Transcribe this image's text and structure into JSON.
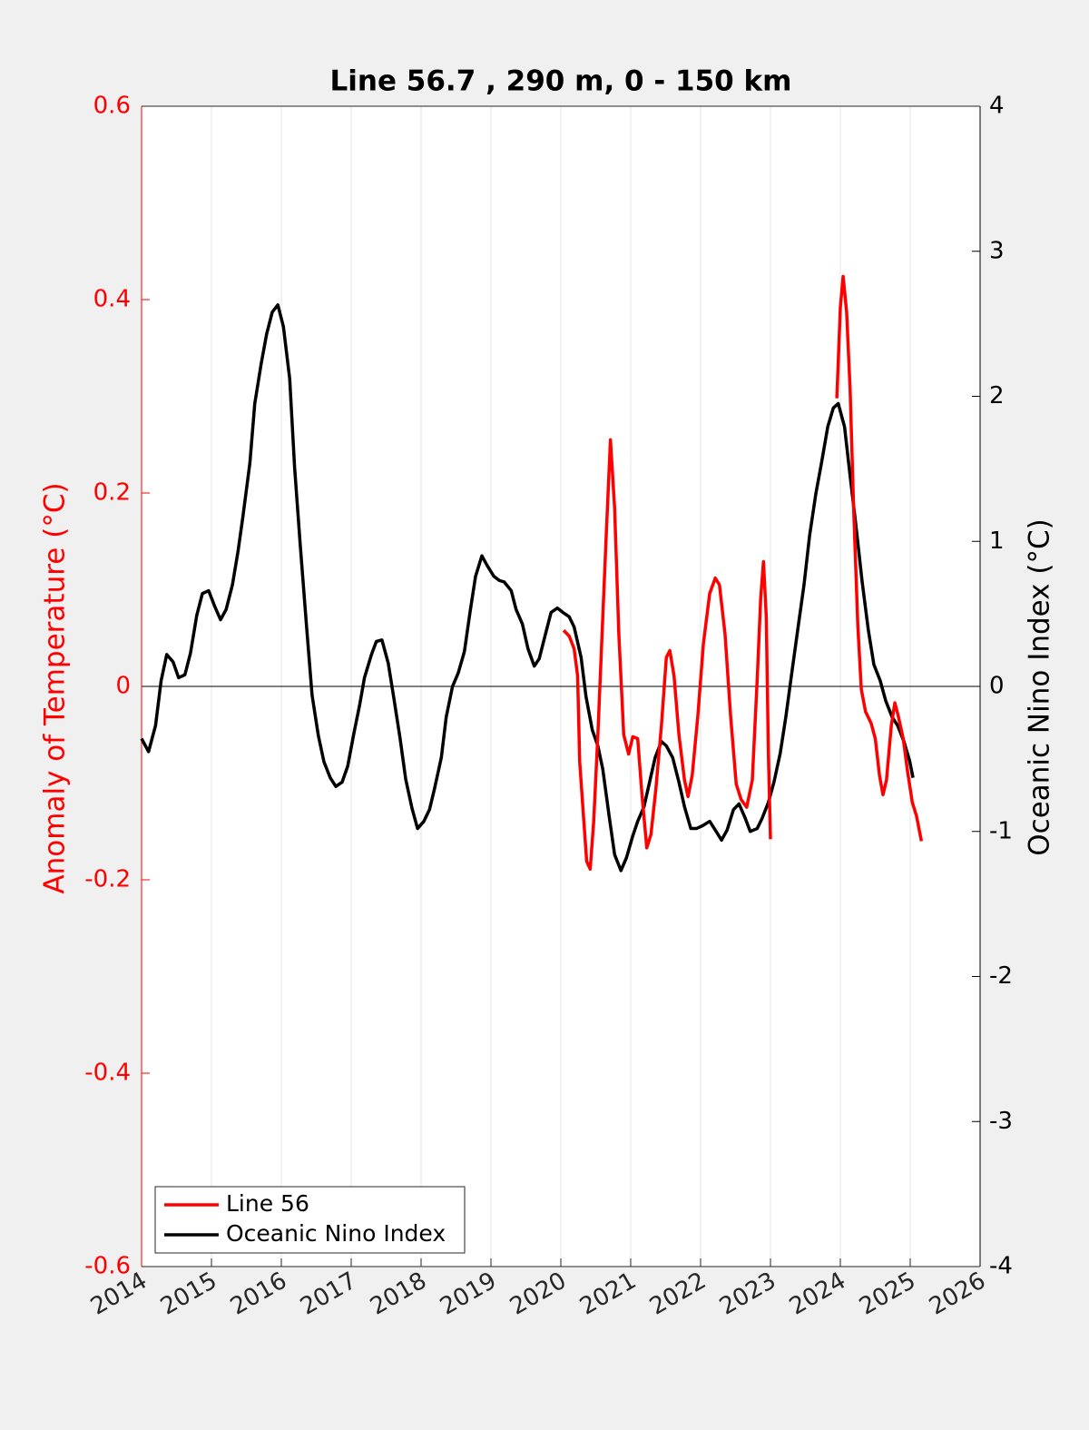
{
  "chart_data": {
    "type": "line",
    "title": "Line 56.7 , 290 m, 0 - 150 km",
    "ylabel": "Anomaly of Temperature (°C)",
    "y2label": "Oceanic Nino Index (°C)",
    "xlim": [
      2014,
      2026
    ],
    "xticks": [
      2014,
      2015,
      2016,
      2017,
      2018,
      2019,
      2020,
      2021,
      2022,
      2023,
      2024,
      2025,
      2026
    ],
    "ylim": [
      -0.6,
      0.6
    ],
    "yticks": [
      -0.6,
      -0.4,
      -0.2,
      0,
      0.2,
      0.4,
      0.6
    ],
    "y2lim": [
      -4,
      4
    ],
    "y2ticks": [
      -4,
      -3,
      -2,
      -1,
      0,
      1,
      2,
      3,
      4
    ],
    "grid": true,
    "legend": "lower left",
    "ycolor": "#ff0000",
    "y2color": "#000000",
    "series": [
      {
        "name": "Line 56",
        "color": "#ff0000",
        "x": [
          2020.04,
          2020.12,
          2020.19,
          2020.24,
          2020.27,
          2020.32,
          2020.37,
          2020.42,
          2020.47,
          2020.53,
          2020.59,
          2020.65,
          2020.71,
          2020.77,
          2020.83,
          2020.9,
          2020.97,
          2021.03,
          2021.1,
          2021.16,
          2021.23,
          2021.29,
          2021.36,
          2021.44,
          2021.51,
          2021.56,
          2021.62,
          2021.69,
          2021.77,
          2021.82,
          2021.88,
          2021.96,
          2022.04,
          2022.13,
          2022.21,
          2022.27,
          2022.35,
          2022.43,
          2022.51,
          2022.58,
          2022.66,
          2022.74,
          2022.81,
          2022.86,
          2022.9,
          2022.94,
          2022.97,
          2023.0,
          2023.5,
          2023.95,
          2024.0,
          2024.04,
          2024.09,
          2024.14,
          2024.19,
          2024.25,
          2024.3,
          2024.36,
          2024.44,
          2024.5,
          2024.56,
          2024.61,
          2024.66,
          2024.73,
          2024.78,
          2024.83,
          2024.9,
          2024.96,
          2025.03,
          2025.09,
          2025.16
        ],
        "values": [
          0.058,
          0.052,
          0.039,
          0.011,
          -0.078,
          -0.13,
          -0.181,
          -0.189,
          -0.14,
          -0.05,
          0.054,
          0.157,
          0.255,
          0.184,
          0.054,
          -0.05,
          -0.07,
          -0.052,
          -0.054,
          -0.111,
          -0.167,
          -0.153,
          -0.106,
          -0.04,
          0.03,
          0.037,
          0.011,
          -0.05,
          -0.097,
          -0.114,
          -0.092,
          -0.031,
          0.044,
          0.096,
          0.112,
          0.105,
          0.054,
          -0.031,
          -0.101,
          -0.117,
          -0.125,
          -0.097,
          0.007,
          0.091,
          0.129,
          0.072,
          -0.069,
          -0.158,
          null,
          0.298,
          0.392,
          0.424,
          0.387,
          0.307,
          0.185,
          0.063,
          -0.003,
          -0.026,
          -0.038,
          -0.054,
          -0.092,
          -0.112,
          -0.097,
          -0.04,
          -0.017,
          -0.031,
          -0.054,
          -0.087,
          -0.12,
          -0.134,
          -0.16
        ]
      },
      {
        "name": "Oceanic Nino Index",
        "color": "#000000",
        "axis": "y2",
        "x": [
          2014.0,
          2014.1,
          2014.2,
          2014.28,
          2014.36,
          2014.45,
          2014.53,
          2014.62,
          2014.7,
          2014.79,
          2014.87,
          2014.96,
          2015.04,
          2015.13,
          2015.21,
          2015.3,
          2015.38,
          2015.45,
          2015.55,
          2015.62,
          2015.71,
          2015.79,
          2015.87,
          2015.95,
          2016.03,
          2016.12,
          2016.19,
          2016.27,
          2016.36,
          2016.44,
          2016.53,
          2016.61,
          2016.7,
          2016.78,
          2016.87,
          2016.95,
          2017.04,
          2017.12,
          2017.19,
          2017.29,
          2017.36,
          2017.44,
          2017.53,
          2017.61,
          2017.7,
          2017.78,
          2017.87,
          2017.95,
          2018.04,
          2018.12,
          2018.19,
          2018.29,
          2018.36,
          2018.45,
          2018.53,
          2018.62,
          2018.7,
          2018.78,
          2018.87,
          2018.95,
          2019.04,
          2019.12,
          2019.19,
          2019.29,
          2019.36,
          2019.45,
          2019.53,
          2019.62,
          2019.69,
          2019.78,
          2019.86,
          2019.95,
          2020.03,
          2020.12,
          2020.19,
          2020.29,
          2020.36,
          2020.45,
          2020.53,
          2020.6,
          2020.69,
          2020.77,
          2020.86,
          2020.94,
          2021.03,
          2021.1,
          2021.19,
          2021.27,
          2021.35,
          2021.44,
          2021.51,
          2021.6,
          2021.69,
          2021.77,
          2021.86,
          2021.94,
          2022.03,
          2022.13,
          2022.21,
          2022.3,
          2022.38,
          2022.47,
          2022.55,
          2022.64,
          2022.71,
          2022.81,
          2022.88,
          2022.97,
          2023.05,
          2023.14,
          2023.22,
          2023.31,
          2023.39,
          2023.48,
          2023.56,
          2023.65,
          2023.73,
          2023.82,
          2023.9,
          2023.97,
          2024.06,
          2024.14,
          2024.23,
          2024.31,
          2024.4,
          2024.48,
          2024.57,
          2024.65,
          2024.74,
          2024.82,
          2024.91,
          2024.99,
          2025.04
        ],
        "values": [
          -0.36,
          -0.45,
          -0.27,
          0.04,
          0.22,
          0.17,
          0.06,
          0.08,
          0.23,
          0.49,
          0.64,
          0.66,
          0.56,
          0.46,
          0.53,
          0.7,
          0.93,
          1.17,
          1.54,
          1.95,
          2.22,
          2.43,
          2.58,
          2.63,
          2.48,
          2.12,
          1.51,
          0.98,
          0.42,
          -0.06,
          -0.34,
          -0.52,
          -0.63,
          -0.69,
          -0.66,
          -0.55,
          -0.32,
          -0.13,
          0.06,
          0.22,
          0.31,
          0.32,
          0.16,
          -0.08,
          -0.36,
          -0.64,
          -0.84,
          -0.98,
          -0.93,
          -0.85,
          -0.71,
          -0.49,
          -0.21,
          0.0,
          0.09,
          0.24,
          0.51,
          0.76,
          0.9,
          0.83,
          0.76,
          0.73,
          0.72,
          0.66,
          0.53,
          0.43,
          0.26,
          0.14,
          0.19,
          0.36,
          0.51,
          0.54,
          0.51,
          0.48,
          0.41,
          0.2,
          -0.07,
          -0.3,
          -0.41,
          -0.57,
          -0.89,
          -1.16,
          -1.27,
          -1.18,
          -1.03,
          -0.93,
          -0.83,
          -0.66,
          -0.49,
          -0.38,
          -0.41,
          -0.49,
          -0.66,
          -0.83,
          -0.98,
          -0.98,
          -0.96,
          -0.93,
          -0.99,
          -1.06,
          -0.99,
          -0.85,
          -0.81,
          -0.91,
          -1.0,
          -0.98,
          -0.91,
          -0.8,
          -0.66,
          -0.46,
          -0.21,
          0.11,
          0.39,
          0.7,
          1.04,
          1.33,
          1.54,
          1.79,
          1.92,
          1.95,
          1.79,
          1.45,
          1.08,
          0.73,
          0.39,
          0.15,
          0.04,
          -0.1,
          -0.21,
          -0.27,
          -0.38,
          -0.51,
          -0.63
        ]
      }
    ]
  }
}
